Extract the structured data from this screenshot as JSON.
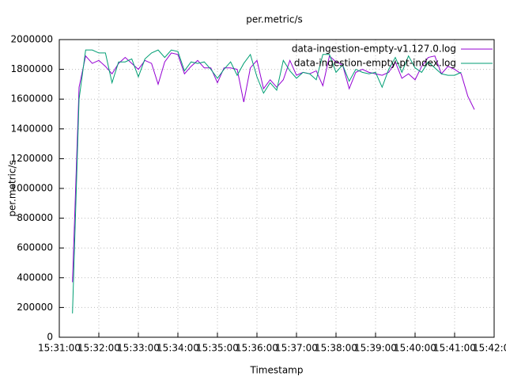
{
  "chart_data": {
    "type": "line",
    "title": "per.metric/s",
    "x_label": "Timestamp",
    "y_label": "per.metric/s",
    "xlim": [
      "15:31:00",
      "15:42:00"
    ],
    "xticks": [
      "15:31:00",
      "15:32:00",
      "15:33:00",
      "15:34:00",
      "15:35:00",
      "15:36:00",
      "15:37:00",
      "15:38:00",
      "15:39:00",
      "15:40:00",
      "15:41:00",
      "15:42:00"
    ],
    "ylim": [
      0,
      2000000
    ],
    "yticks": [
      0,
      200000,
      400000,
      600000,
      800000,
      1000000,
      1200000,
      1400000,
      1600000,
      1800000,
      2000000
    ],
    "grid": true,
    "legend": "top-right",
    "series": [
      {
        "name": "data-ingestion-empty-v1.127.0.log",
        "color": "#9400d3",
        "x": [
          "15:31:20",
          "15:31:30",
          "15:31:40",
          "15:31:50",
          "15:32:00",
          "15:32:10",
          "15:32:20",
          "15:32:30",
          "15:32:40",
          "15:32:50",
          "15:33:00",
          "15:33:10",
          "15:33:20",
          "15:33:30",
          "15:33:40",
          "15:33:50",
          "15:34:00",
          "15:34:10",
          "15:34:20",
          "15:34:30",
          "15:34:40",
          "15:34:50",
          "15:35:00",
          "15:35:10",
          "15:35:20",
          "15:35:30",
          "15:35:40",
          "15:35:50",
          "15:36:00",
          "15:36:10",
          "15:36:20",
          "15:36:30",
          "15:36:40",
          "15:36:50",
          "15:37:00",
          "15:37:10",
          "15:37:20",
          "15:37:30",
          "15:37:40",
          "15:37:50",
          "15:38:00",
          "15:38:10",
          "15:38:20",
          "15:38:30",
          "15:38:40",
          "15:38:50",
          "15:39:00",
          "15:39:10",
          "15:39:20",
          "15:39:30",
          "15:39:40",
          "15:39:50",
          "15:40:00",
          "15:40:10",
          "15:40:20",
          "15:40:30",
          "15:40:40",
          "15:40:50",
          "15:41:00",
          "15:41:10",
          "15:41:20",
          "15:41:30"
        ],
        "values": [
          370000,
          1680000,
          1890000,
          1840000,
          1860000,
          1820000,
          1770000,
          1840000,
          1880000,
          1840000,
          1800000,
          1860000,
          1840000,
          1700000,
          1850000,
          1910000,
          1900000,
          1770000,
          1820000,
          1860000,
          1810000,
          1810000,
          1710000,
          1810000,
          1810000,
          1800000,
          1580000,
          1810000,
          1860000,
          1670000,
          1730000,
          1680000,
          1730000,
          1860000,
          1760000,
          1780000,
          1770000,
          1790000,
          1690000,
          1890000,
          1850000,
          1830000,
          1670000,
          1780000,
          1800000,
          1780000,
          1770000,
          1760000,
          1780000,
          1850000,
          1740000,
          1770000,
          1730000,
          1820000,
          1880000,
          1890000,
          1770000,
          1820000,
          1800000,
          1770000,
          1620000,
          1530000
        ]
      },
      {
        "name": "data-ingestion-empty-pt-index.log",
        "color": "#009e73",
        "x": [
          "15:31:20",
          "15:31:30",
          "15:31:40",
          "15:31:50",
          "15:32:00",
          "15:32:10",
          "15:32:20",
          "15:32:30",
          "15:32:40",
          "15:32:50",
          "15:33:00",
          "15:33:10",
          "15:33:20",
          "15:33:30",
          "15:33:40",
          "15:33:50",
          "15:34:00",
          "15:34:10",
          "15:34:20",
          "15:34:30",
          "15:34:40",
          "15:34:50",
          "15:35:00",
          "15:35:10",
          "15:35:20",
          "15:35:30",
          "15:35:40",
          "15:35:50",
          "15:36:00",
          "15:36:10",
          "15:36:20",
          "15:36:30",
          "15:36:40",
          "15:36:50",
          "15:37:00",
          "15:37:10",
          "15:37:20",
          "15:37:30",
          "15:37:40",
          "15:37:50",
          "15:38:00",
          "15:38:10",
          "15:38:20",
          "15:38:30",
          "15:38:40",
          "15:38:50",
          "15:39:00",
          "15:39:10",
          "15:39:20",
          "15:39:30",
          "15:39:40",
          "15:39:50",
          "15:40:00",
          "15:40:10",
          "15:40:20",
          "15:40:30",
          "15:40:40",
          "15:40:50",
          "15:41:00",
          "15:41:10"
        ],
        "values": [
          160000,
          1600000,
          1930000,
          1930000,
          1910000,
          1910000,
          1710000,
          1850000,
          1850000,
          1870000,
          1750000,
          1870000,
          1910000,
          1930000,
          1880000,
          1930000,
          1920000,
          1790000,
          1850000,
          1840000,
          1850000,
          1800000,
          1740000,
          1800000,
          1850000,
          1760000,
          1840000,
          1900000,
          1750000,
          1640000,
          1710000,
          1660000,
          1860000,
          1790000,
          1740000,
          1780000,
          1770000,
          1730000,
          1900000,
          1900000,
          1780000,
          1830000,
          1720000,
          1800000,
          1780000,
          1770000,
          1780000,
          1680000,
          1800000,
          1880000,
          1780000,
          1890000,
          1810000,
          1780000,
          1850000,
          1810000,
          1770000,
          1760000,
          1760000,
          1780000
        ]
      }
    ]
  }
}
